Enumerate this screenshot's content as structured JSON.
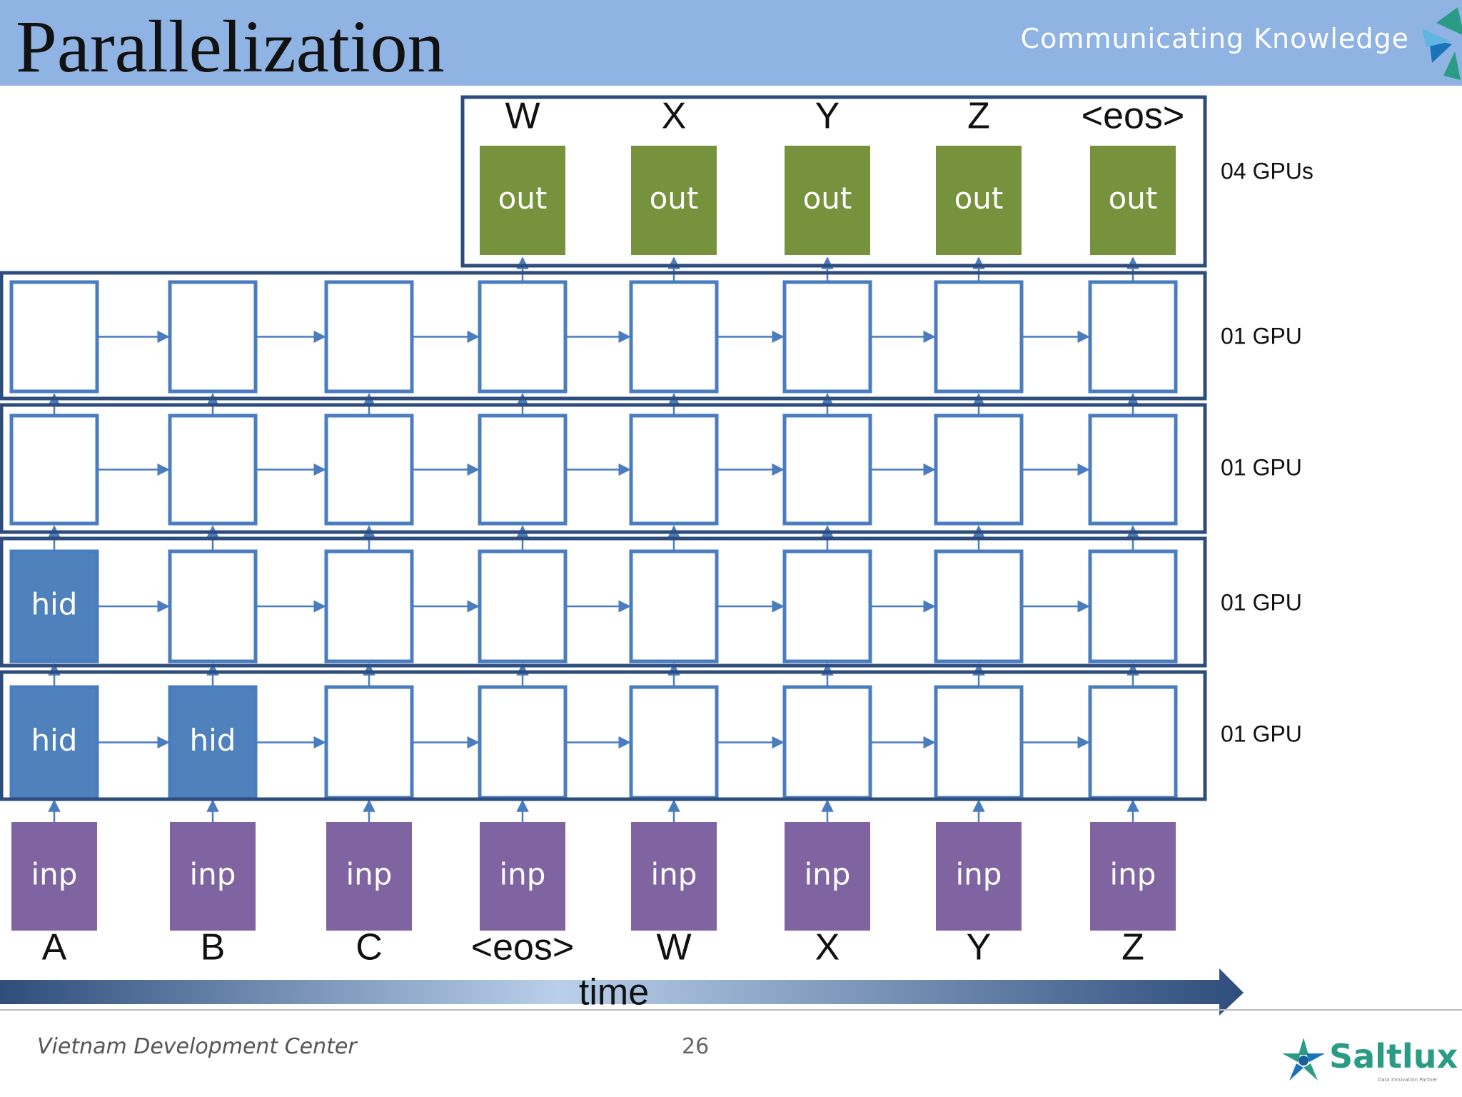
{
  "slide": {
    "title": "Parallelization",
    "tagline": "Communicating Knowledge",
    "footer": "Vietnam Development Center",
    "page_number": "26"
  },
  "logo": {
    "text": "Saltlux",
    "subtext": "Data Innovation Partner"
  },
  "diagram": {
    "top_tokens": [
      "W",
      "X",
      "Y",
      "Z",
      "<eos>"
    ],
    "output_label": "out",
    "hidden_label": "hid",
    "input_label": "inp",
    "bottom_tokens": [
      "A",
      "B",
      "C",
      "<eos>",
      "W",
      "X",
      "Y",
      "Z"
    ],
    "gpu_labels": [
      "04 GPUs",
      "01 GPU",
      "01 GPU",
      "01 GPU",
      "01 GPU"
    ],
    "time_label": "time",
    "hid_filled": [
      [],
      [],
      [
        0
      ],
      [
        0,
        1
      ]
    ]
  },
  "colors": {
    "header_bg": "#8fb3e3",
    "box_border": "#4a7cc0",
    "group_border": "#2f4d7c",
    "hid_fill": "#4f81bd",
    "out_fill": "#76923c",
    "inp_fill": "#8064a2"
  }
}
